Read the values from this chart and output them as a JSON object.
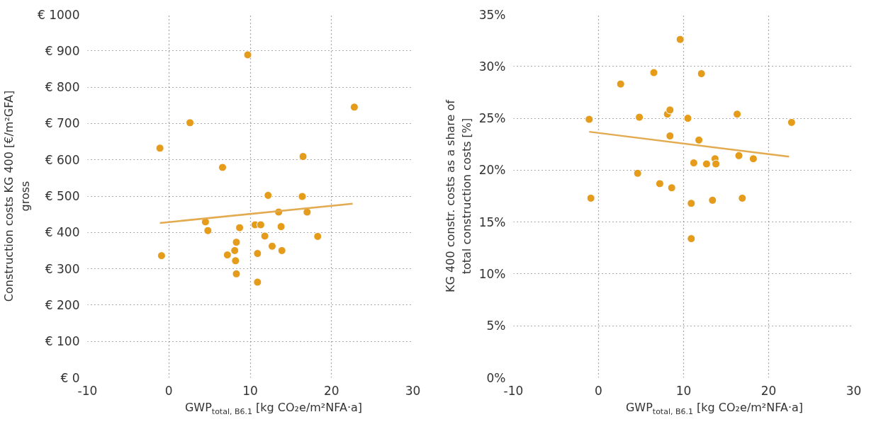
{
  "chart_data": [
    {
      "type": "scatter",
      "xlabel": "GWP$_{total, B6.1}$ [kg CO₂e/m²NFA·a]",
      "ylabel": "Construction costs KG 400 [€/m²GFA]\ngross",
      "xlim": [
        -10,
        30
      ],
      "xticks": [
        -10,
        0,
        10,
        20,
        30
      ],
      "ylim": [
        0,
        1000
      ],
      "yticks": [
        {
          "value": 0,
          "label": "€ 0"
        },
        {
          "value": 100,
          "label": "€ 100"
        },
        {
          "value": 200,
          "label": "€ 200"
        },
        {
          "value": 300,
          "label": "€ 300"
        },
        {
          "value": 400,
          "label": "€ 400"
        },
        {
          "value": 500,
          "label": "€ 500"
        },
        {
          "value": 600,
          "label": "€ 600"
        },
        {
          "value": 700,
          "label": "€ 700"
        },
        {
          "value": 800,
          "label": "€ 800"
        },
        {
          "value": 900,
          "label": "€ 900"
        },
        {
          "value": 1000,
          "label": "€ 1000"
        }
      ],
      "grid": true,
      "series": [
        {
          "marker": "circle",
          "color": "#e59c1b",
          "x": [
            -1.1,
            -0.9,
            2.6,
            4.5,
            4.8,
            6.6,
            7.2,
            8.1,
            8.3,
            8.2,
            8.3,
            8.7,
            9.7,
            10.6,
            11.3,
            10.9,
            10.9,
            11.8,
            12.2,
            12.7,
            13.5,
            13.8,
            13.9,
            16.4,
            16.5,
            17.0,
            18.3,
            22.8
          ],
          "values": [
            632,
            336,
            702,
            429,
            405,
            579,
            338,
            350,
            373,
            322,
            286,
            413,
            889,
            421,
            421,
            342,
            263,
            390,
            502,
            362,
            456,
            416,
            350,
            499,
            609,
            456,
            389,
            745
          ]
        },
        {
          "type": "line",
          "color": "#e3aa50",
          "line_style": "solid",
          "x": [
            -1.1,
            22.6
          ],
          "values": [
            426,
            479
          ]
        }
      ]
    },
    {
      "type": "scatter",
      "xlabel": "GWP$_{total, B6.1}$ [kg CO₂e/m²NFA·a]",
      "ylabel": "KG 400 constr. costs as a share of\ntotal construction costs [%]",
      "xlim": [
        -10,
        30
      ],
      "xticks": [
        -10,
        0,
        10,
        20,
        30
      ],
      "ylim": [
        0,
        35
      ],
      "yticks": [
        {
          "value": 0,
          "label": "0%"
        },
        {
          "value": 5,
          "label": "5%"
        },
        {
          "value": 10,
          "label": "10%"
        },
        {
          "value": 15,
          "label": "15%"
        },
        {
          "value": 20,
          "label": "20%"
        },
        {
          "value": 25,
          "label": "25%"
        },
        {
          "value": 30,
          "label": "30%"
        },
        {
          "value": 35,
          "label": "35%"
        }
      ],
      "grid": true,
      "series": [
        {
          "marker": "circle",
          "color": "#e59c1b",
          "x": [
            -1.1,
            -0.9,
            2.6,
            4.6,
            4.8,
            6.5,
            7.2,
            8.1,
            8.4,
            8.4,
            8.6,
            9.6,
            10.5,
            10.9,
            10.9,
            11.2,
            11.8,
            12.1,
            12.7,
            13.4,
            13.7,
            13.8,
            16.3,
            16.5,
            16.9,
            18.2,
            22.7
          ],
          "values": [
            24.9,
            17.3,
            28.3,
            19.7,
            25.1,
            29.4,
            18.7,
            25.4,
            25.8,
            23.3,
            18.3,
            32.6,
            25.0,
            16.8,
            13.4,
            20.7,
            22.9,
            29.3,
            20.6,
            17.1,
            21.1,
            20.6,
            25.4,
            21.4,
            17.3,
            21.1,
            24.6
          ]
        },
        {
          "type": "line",
          "color": "#e3aa50",
          "line_style": "solid",
          "x": [
            -1.1,
            22.4
          ],
          "values": [
            23.7,
            21.3
          ]
        }
      ]
    }
  ]
}
